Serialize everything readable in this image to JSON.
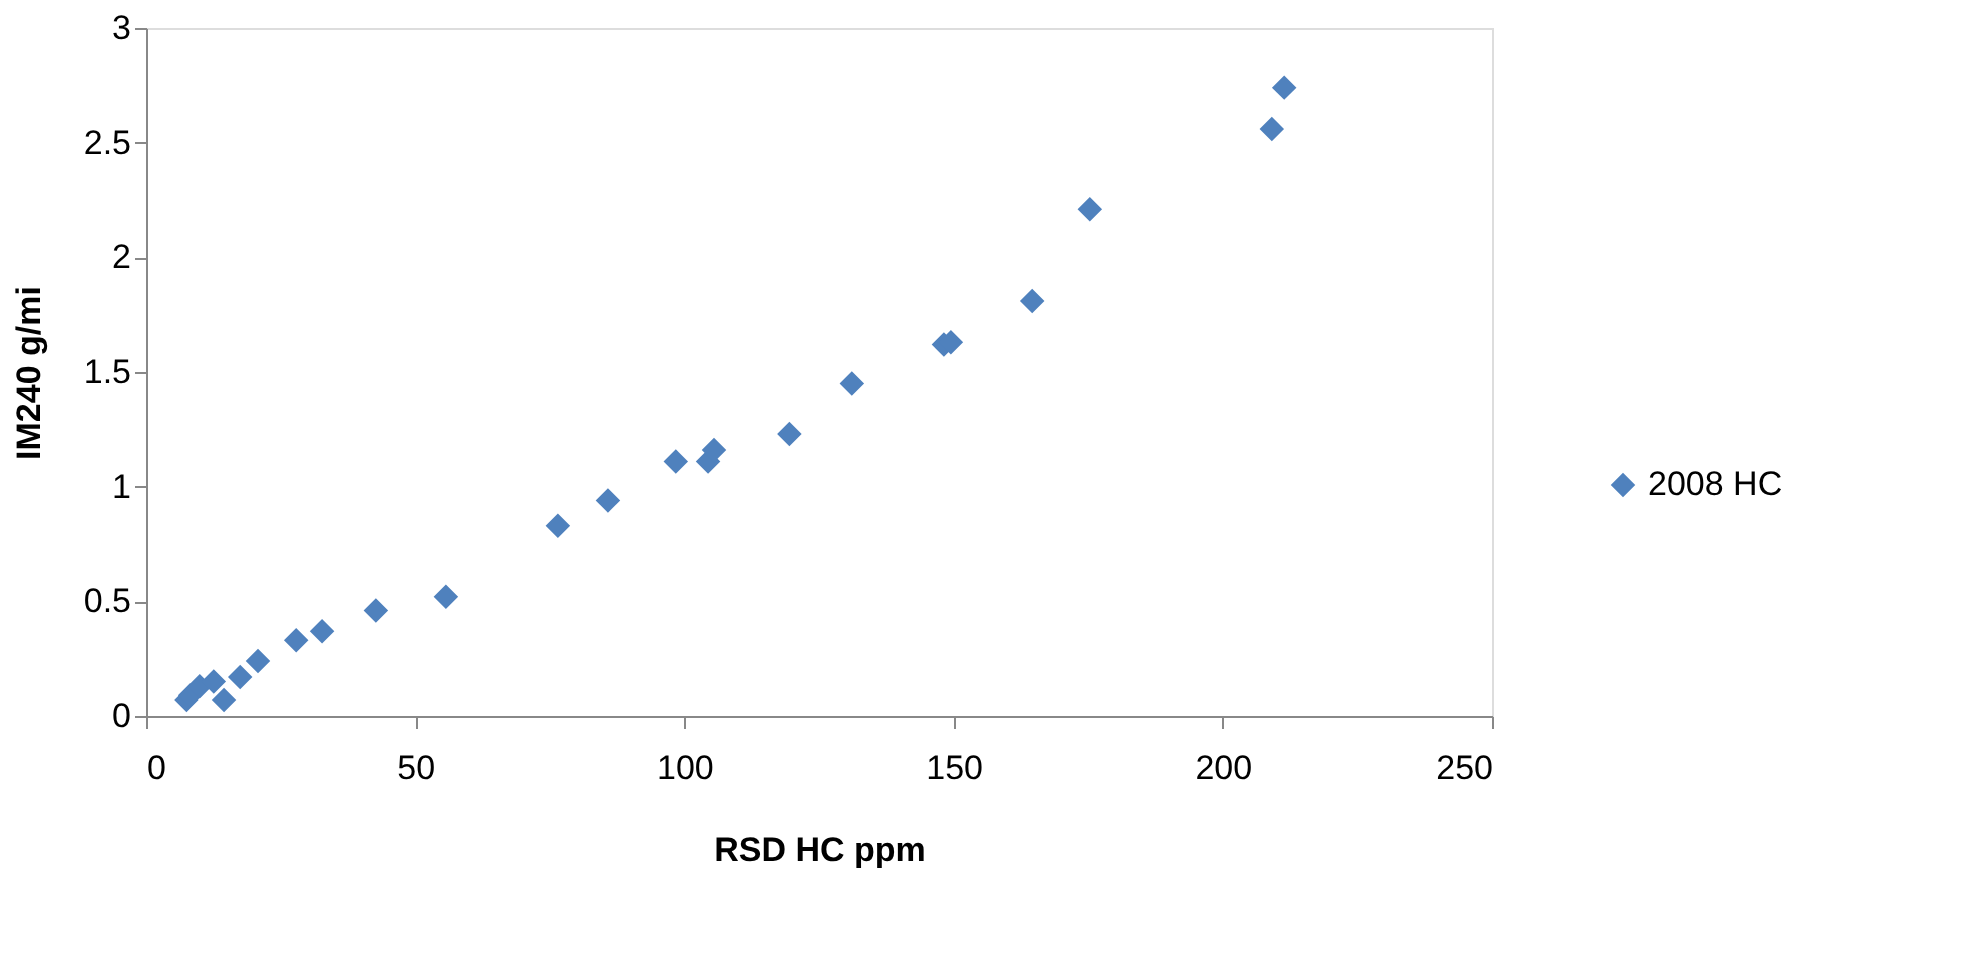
{
  "chart_data": {
    "type": "scatter",
    "xlabel": "RSD HC ppm",
    "ylabel": "IM240 g/mi",
    "xlim": [
      0,
      250
    ],
    "ylim": [
      0,
      3
    ],
    "xticks": [
      0,
      50,
      100,
      150,
      200,
      250
    ],
    "yticks": [
      0,
      0.5,
      1,
      1.5,
      2,
      2.5,
      3
    ],
    "grid": false,
    "legend": "right",
    "marker": "diamond",
    "series": [
      {
        "name": "2008 HC",
        "color": "#4f81bd",
        "x": [
          7.5,
          8.2,
          10,
          12.6,
          14.5,
          17.5,
          20.8,
          27.9,
          32.7,
          42.7,
          55.7,
          76.5,
          85.8,
          98.4,
          104.4,
          105.5,
          119.5,
          131.1,
          148.2,
          149.5,
          164.6,
          175.3,
          209.1,
          211.4
        ],
        "values": [
          0.07,
          0.09,
          0.13,
          0.15,
          0.07,
          0.17,
          0.24,
          0.33,
          0.37,
          0.46,
          0.52,
          0.83,
          0.94,
          1.11,
          1.11,
          1.16,
          1.23,
          1.45,
          1.62,
          1.63,
          1.81,
          2.21,
          2.56,
          2.74
        ]
      }
    ]
  }
}
